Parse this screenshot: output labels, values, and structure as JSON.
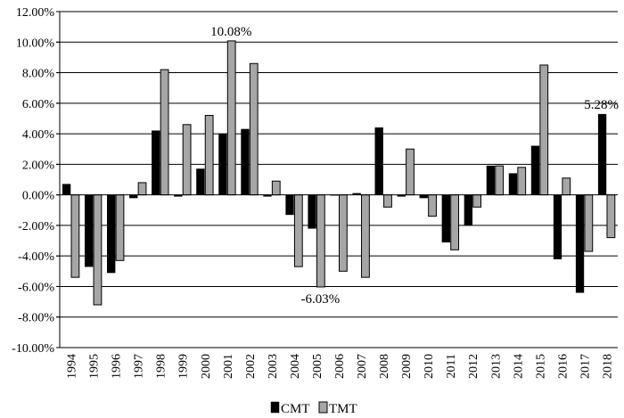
{
  "chart_data": {
    "type": "bar",
    "title": "",
    "xlabel": "",
    "ylabel": "",
    "categories": [
      "1994",
      "1995",
      "1996",
      "1997",
      "1998",
      "1999",
      "2000",
      "2001",
      "2002",
      "2003",
      "2004",
      "2005",
      "2006",
      "2007",
      "2008",
      "2009",
      "2010",
      "2011",
      "2012",
      "2013",
      "2014",
      "2015",
      "2016",
      "2017",
      "2018"
    ],
    "series": [
      {
        "name": "CMT",
        "color": "#000000",
        "values": [
          0.7,
          -4.7,
          -5.1,
          -0.2,
          4.2,
          -0.1,
          1.7,
          4.0,
          4.3,
          -0.1,
          -1.3,
          -2.2,
          0.0,
          0.1,
          4.4,
          -0.1,
          -0.2,
          -3.1,
          -2.0,
          1.9,
          1.4,
          3.2,
          -4.2,
          -6.4,
          5.28
        ]
      },
      {
        "name": "TMT",
        "color": "#a6a6a6",
        "values": [
          -5.4,
          -7.2,
          -4.3,
          0.8,
          8.2,
          4.6,
          5.2,
          10.08,
          8.6,
          0.9,
          -4.7,
          -6.03,
          -5.0,
          -5.4,
          -0.8,
          3.0,
          -1.4,
          -3.6,
          -0.8,
          1.9,
          1.8,
          8.5,
          1.1,
          -3.7,
          -2.8
        ]
      }
    ],
    "ylim": [
      -10,
      12
    ],
    "yticks": [
      "12.00%",
      "10.00%",
      "8.00%",
      "6.00%",
      "4.00%",
      "2.00%",
      "0.00%",
      "-2.00%",
      "-4.00%",
      "-6.00%",
      "-8.00%",
      "-10.00%"
    ],
    "grid": true,
    "legend": {
      "placement": "bottom-center"
    },
    "annotations": [
      {
        "text": "10.08%",
        "category": "2001",
        "series": "TMT",
        "value": 10.08
      },
      {
        "text": "-6.03%",
        "category": "2005",
        "series": "TMT",
        "value": -6.03
      },
      {
        "text": "5.28%",
        "category": "2018",
        "series": "CMT",
        "value": 5.28
      }
    ]
  }
}
